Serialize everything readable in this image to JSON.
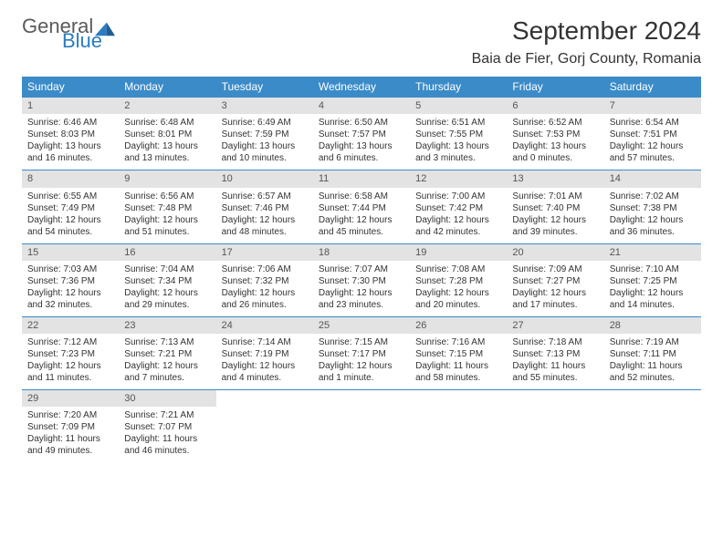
{
  "logo": {
    "text_a": "General",
    "text_b": "Blue"
  },
  "title": "September 2024",
  "location": "Baia de Fier, Gorj County, Romania",
  "header_bg": "#3b8bc8",
  "daynum_bg": "#e3e3e3",
  "weekdays": [
    "Sunday",
    "Monday",
    "Tuesday",
    "Wednesday",
    "Thursday",
    "Friday",
    "Saturday"
  ],
  "weeks": [
    [
      {
        "n": "1",
        "sr": "Sunrise: 6:46 AM",
        "ss": "Sunset: 8:03 PM",
        "d1": "Daylight: 13 hours",
        "d2": "and 16 minutes."
      },
      {
        "n": "2",
        "sr": "Sunrise: 6:48 AM",
        "ss": "Sunset: 8:01 PM",
        "d1": "Daylight: 13 hours",
        "d2": "and 13 minutes."
      },
      {
        "n": "3",
        "sr": "Sunrise: 6:49 AM",
        "ss": "Sunset: 7:59 PM",
        "d1": "Daylight: 13 hours",
        "d2": "and 10 minutes."
      },
      {
        "n": "4",
        "sr": "Sunrise: 6:50 AM",
        "ss": "Sunset: 7:57 PM",
        "d1": "Daylight: 13 hours",
        "d2": "and 6 minutes."
      },
      {
        "n": "5",
        "sr": "Sunrise: 6:51 AM",
        "ss": "Sunset: 7:55 PM",
        "d1": "Daylight: 13 hours",
        "d2": "and 3 minutes."
      },
      {
        "n": "6",
        "sr": "Sunrise: 6:52 AM",
        "ss": "Sunset: 7:53 PM",
        "d1": "Daylight: 13 hours",
        "d2": "and 0 minutes."
      },
      {
        "n": "7",
        "sr": "Sunrise: 6:54 AM",
        "ss": "Sunset: 7:51 PM",
        "d1": "Daylight: 12 hours",
        "d2": "and 57 minutes."
      }
    ],
    [
      {
        "n": "8",
        "sr": "Sunrise: 6:55 AM",
        "ss": "Sunset: 7:49 PM",
        "d1": "Daylight: 12 hours",
        "d2": "and 54 minutes."
      },
      {
        "n": "9",
        "sr": "Sunrise: 6:56 AM",
        "ss": "Sunset: 7:48 PM",
        "d1": "Daylight: 12 hours",
        "d2": "and 51 minutes."
      },
      {
        "n": "10",
        "sr": "Sunrise: 6:57 AM",
        "ss": "Sunset: 7:46 PM",
        "d1": "Daylight: 12 hours",
        "d2": "and 48 minutes."
      },
      {
        "n": "11",
        "sr": "Sunrise: 6:58 AM",
        "ss": "Sunset: 7:44 PM",
        "d1": "Daylight: 12 hours",
        "d2": "and 45 minutes."
      },
      {
        "n": "12",
        "sr": "Sunrise: 7:00 AM",
        "ss": "Sunset: 7:42 PM",
        "d1": "Daylight: 12 hours",
        "d2": "and 42 minutes."
      },
      {
        "n": "13",
        "sr": "Sunrise: 7:01 AM",
        "ss": "Sunset: 7:40 PM",
        "d1": "Daylight: 12 hours",
        "d2": "and 39 minutes."
      },
      {
        "n": "14",
        "sr": "Sunrise: 7:02 AM",
        "ss": "Sunset: 7:38 PM",
        "d1": "Daylight: 12 hours",
        "d2": "and 36 minutes."
      }
    ],
    [
      {
        "n": "15",
        "sr": "Sunrise: 7:03 AM",
        "ss": "Sunset: 7:36 PM",
        "d1": "Daylight: 12 hours",
        "d2": "and 32 minutes."
      },
      {
        "n": "16",
        "sr": "Sunrise: 7:04 AM",
        "ss": "Sunset: 7:34 PM",
        "d1": "Daylight: 12 hours",
        "d2": "and 29 minutes."
      },
      {
        "n": "17",
        "sr": "Sunrise: 7:06 AM",
        "ss": "Sunset: 7:32 PM",
        "d1": "Daylight: 12 hours",
        "d2": "and 26 minutes."
      },
      {
        "n": "18",
        "sr": "Sunrise: 7:07 AM",
        "ss": "Sunset: 7:30 PM",
        "d1": "Daylight: 12 hours",
        "d2": "and 23 minutes."
      },
      {
        "n": "19",
        "sr": "Sunrise: 7:08 AM",
        "ss": "Sunset: 7:28 PM",
        "d1": "Daylight: 12 hours",
        "d2": "and 20 minutes."
      },
      {
        "n": "20",
        "sr": "Sunrise: 7:09 AM",
        "ss": "Sunset: 7:27 PM",
        "d1": "Daylight: 12 hours",
        "d2": "and 17 minutes."
      },
      {
        "n": "21",
        "sr": "Sunrise: 7:10 AM",
        "ss": "Sunset: 7:25 PM",
        "d1": "Daylight: 12 hours",
        "d2": "and 14 minutes."
      }
    ],
    [
      {
        "n": "22",
        "sr": "Sunrise: 7:12 AM",
        "ss": "Sunset: 7:23 PM",
        "d1": "Daylight: 12 hours",
        "d2": "and 11 minutes."
      },
      {
        "n": "23",
        "sr": "Sunrise: 7:13 AM",
        "ss": "Sunset: 7:21 PM",
        "d1": "Daylight: 12 hours",
        "d2": "and 7 minutes."
      },
      {
        "n": "24",
        "sr": "Sunrise: 7:14 AM",
        "ss": "Sunset: 7:19 PM",
        "d1": "Daylight: 12 hours",
        "d2": "and 4 minutes."
      },
      {
        "n": "25",
        "sr": "Sunrise: 7:15 AM",
        "ss": "Sunset: 7:17 PM",
        "d1": "Daylight: 12 hours",
        "d2": "and 1 minute."
      },
      {
        "n": "26",
        "sr": "Sunrise: 7:16 AM",
        "ss": "Sunset: 7:15 PM",
        "d1": "Daylight: 11 hours",
        "d2": "and 58 minutes."
      },
      {
        "n": "27",
        "sr": "Sunrise: 7:18 AM",
        "ss": "Sunset: 7:13 PM",
        "d1": "Daylight: 11 hours",
        "d2": "and 55 minutes."
      },
      {
        "n": "28",
        "sr": "Sunrise: 7:19 AM",
        "ss": "Sunset: 7:11 PM",
        "d1": "Daylight: 11 hours",
        "d2": "and 52 minutes."
      }
    ],
    [
      {
        "n": "29",
        "sr": "Sunrise: 7:20 AM",
        "ss": "Sunset: 7:09 PM",
        "d1": "Daylight: 11 hours",
        "d2": "and 49 minutes."
      },
      {
        "n": "30",
        "sr": "Sunrise: 7:21 AM",
        "ss": "Sunset: 7:07 PM",
        "d1": "Daylight: 11 hours",
        "d2": "and 46 minutes."
      },
      {
        "empty": true
      },
      {
        "empty": true
      },
      {
        "empty": true
      },
      {
        "empty": true
      },
      {
        "empty": true
      }
    ]
  ]
}
